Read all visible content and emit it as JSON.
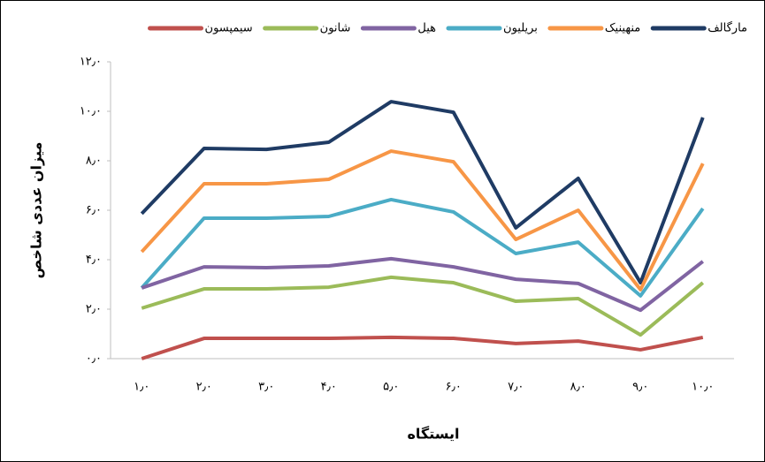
{
  "chart_data": {
    "type": "line",
    "x_label": "ایستگاه",
    "y_label": "میزان عددی شاخص",
    "categories": [
      "۱٫۰",
      "۲٫۰",
      "۳٫۰",
      "۴٫۰",
      "۵٫۰",
      "۶٫۰",
      "۷٫۰",
      "۸٫۰",
      "۹٫۰",
      "۱۰٫۰"
    ],
    "series": [
      {
        "name": "مارگالف",
        "color": "#1f3b64",
        "values": [
          5.86,
          8.5,
          8.46,
          8.75,
          10.39,
          9.96,
          5.29,
          7.29,
          3.07,
          9.75
        ]
      },
      {
        "name": "منهینیک",
        "color": "#f79646",
        "values": [
          4.32,
          7.07,
          7.07,
          7.25,
          8.39,
          7.96,
          4.82,
          6.0,
          2.79,
          7.89
        ]
      },
      {
        "name": "بریلیون",
        "color": "#4bacc6",
        "values": [
          2.86,
          5.68,
          5.68,
          5.75,
          6.43,
          5.93,
          4.25,
          4.71,
          2.54,
          6.07
        ]
      },
      {
        "name": "هیل",
        "color": "#8064a2",
        "values": [
          2.86,
          3.71,
          3.68,
          3.75,
          4.04,
          3.71,
          3.21,
          3.04,
          1.96,
          3.93
        ]
      },
      {
        "name": "شانون",
        "color": "#9bbb59",
        "values": [
          2.04,
          2.82,
          2.82,
          2.89,
          3.29,
          3.07,
          2.32,
          2.43,
          0.96,
          3.07
        ]
      },
      {
        "name": "سیمپسون",
        "color": "#c0504d",
        "values": [
          0,
          0.82,
          0.82,
          0.82,
          0.86,
          0.82,
          0.61,
          0.71,
          0.36,
          0.86
        ]
      }
    ],
    "ylim": [
      0,
      12
    ],
    "yticks": [
      {
        "value": 0,
        "label": "۰٫۰"
      },
      {
        "value": 2,
        "label": "۲٫۰"
      },
      {
        "value": 4,
        "label": "۴٫۰"
      },
      {
        "value": 6,
        "label": "۶٫۰"
      },
      {
        "value": 8,
        "label": "۸٫۰"
      },
      {
        "value": 10,
        "label": "۱۰٫۰"
      },
      {
        "value": 12,
        "label": "۱۲٫۰"
      }
    ],
    "legend": "top",
    "grid": false
  }
}
